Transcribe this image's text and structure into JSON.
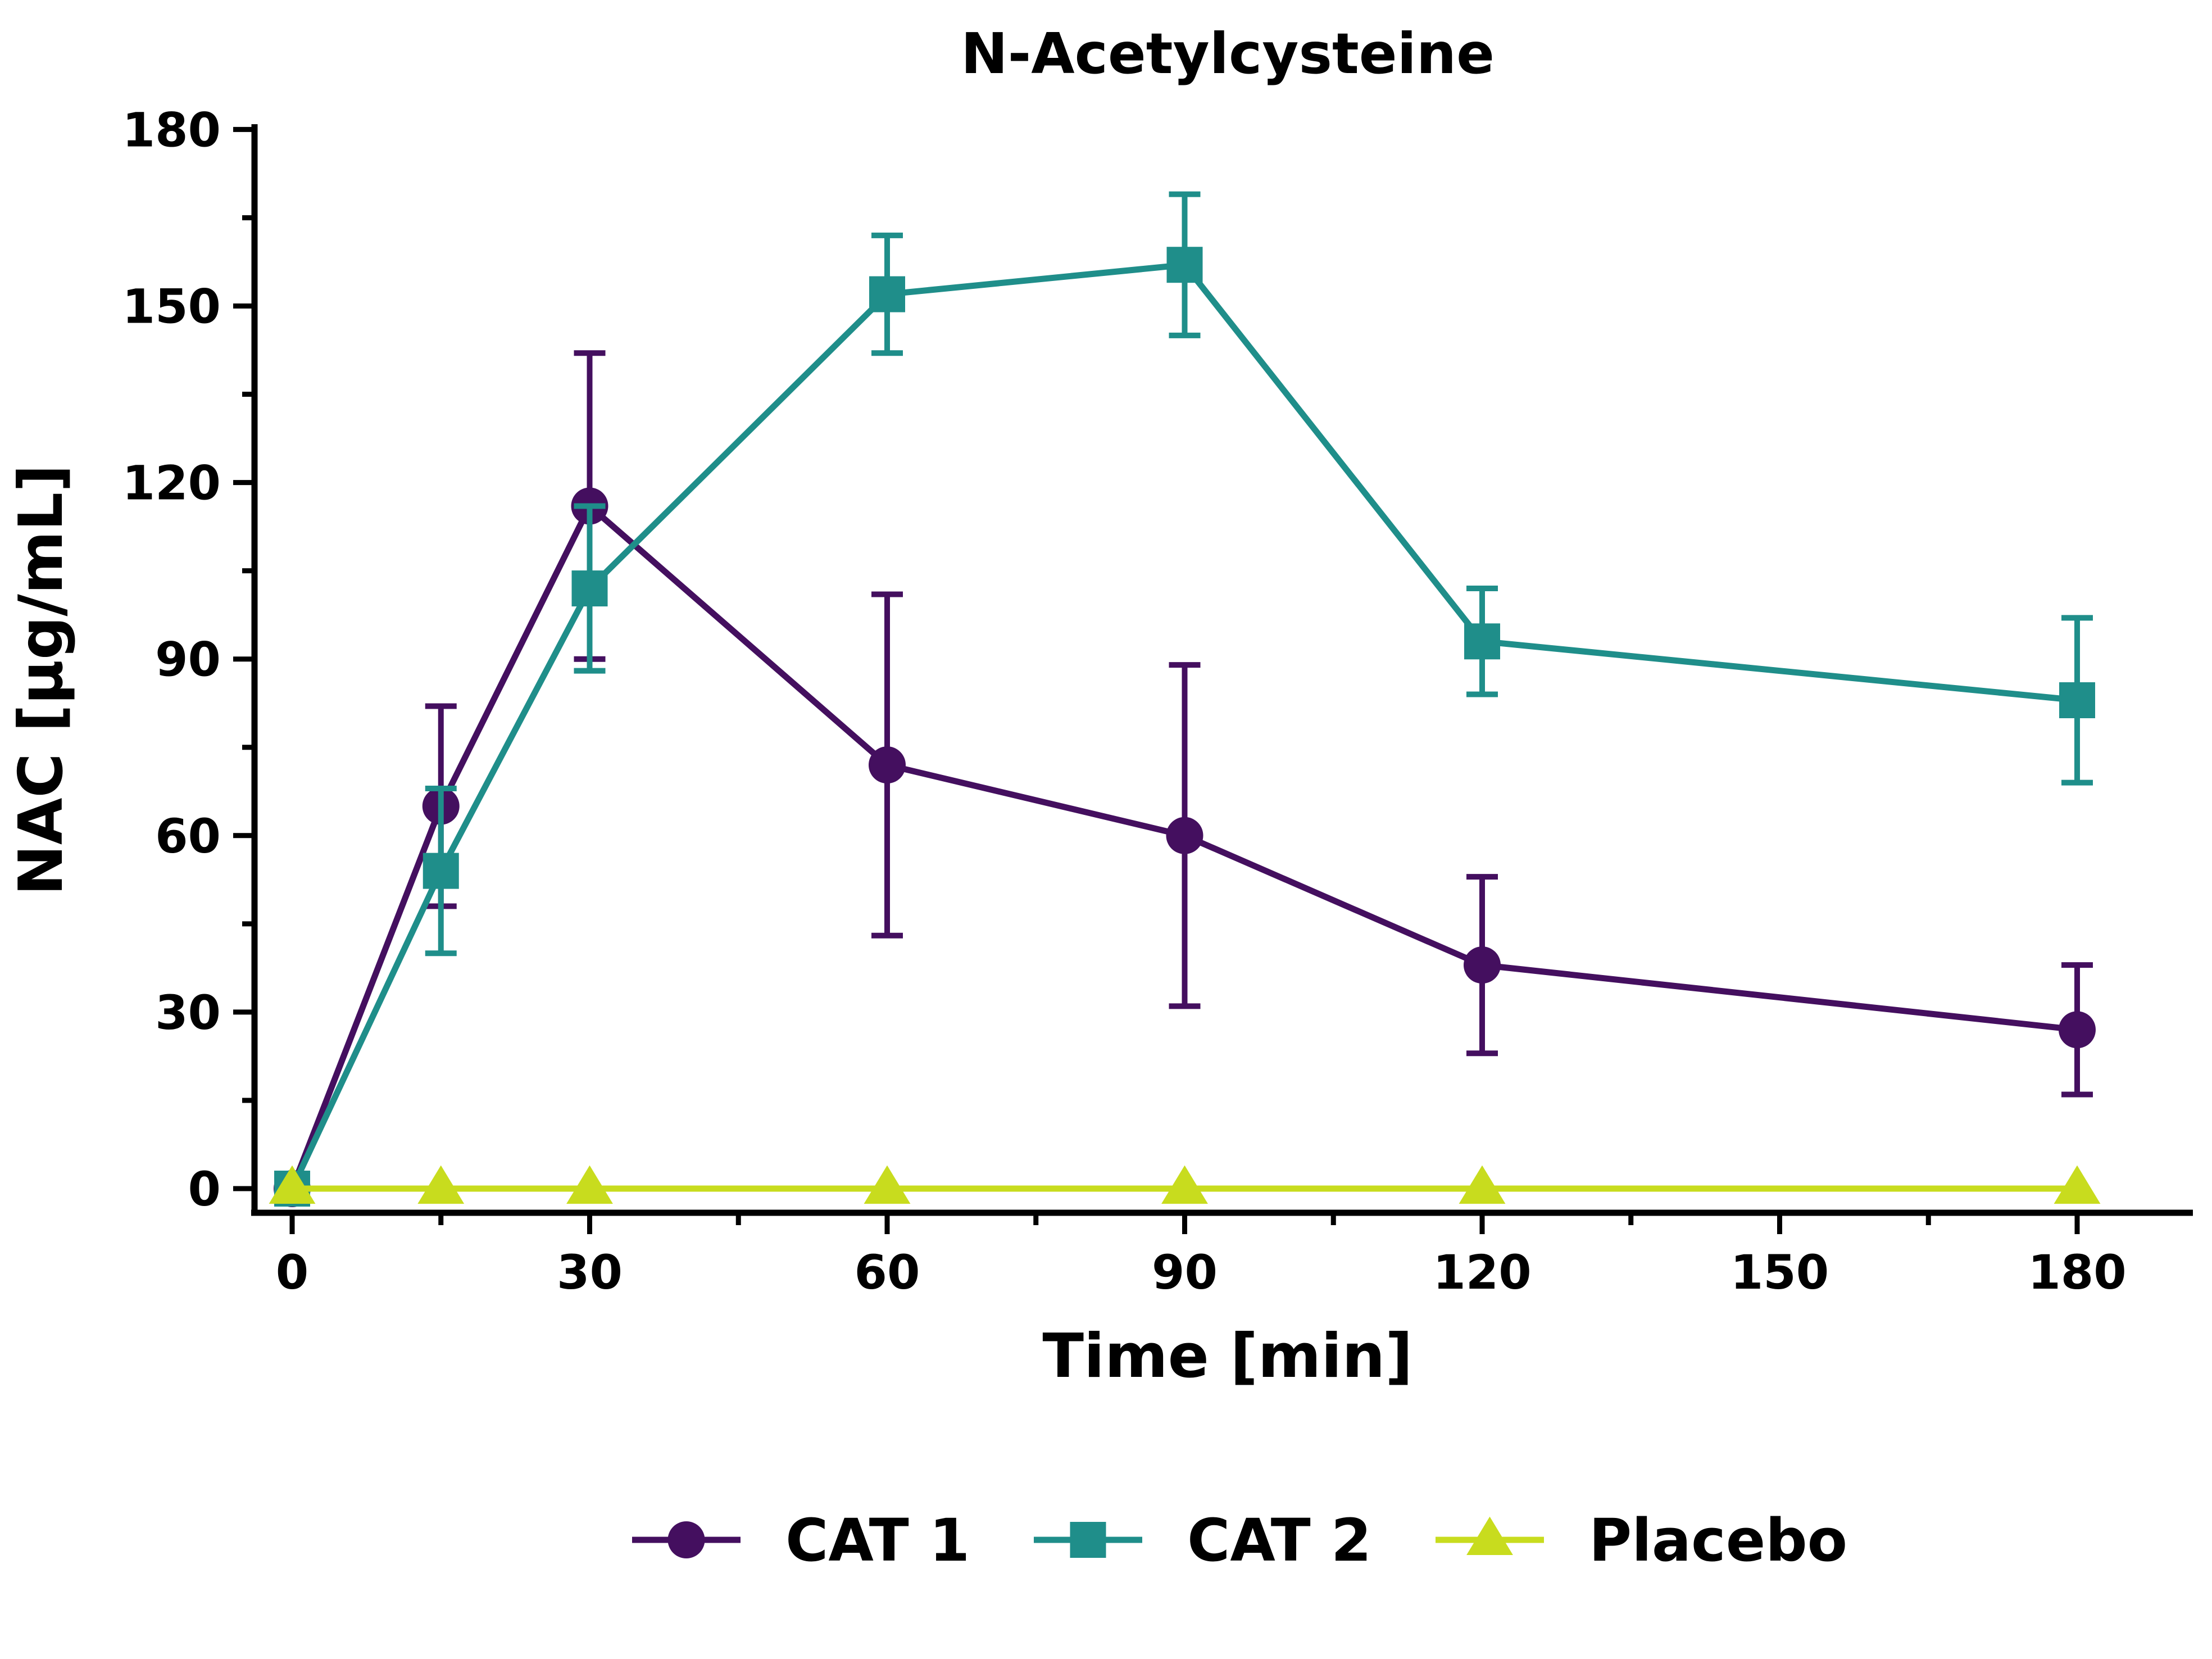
{
  "chart_data": {
    "type": "line",
    "title": "N-Acetylcysteine",
    "xlabel": "Time [min]",
    "ylabel": "NAC [µg/mL]",
    "xlim": [
      -4,
      190
    ],
    "ylim": [
      -4,
      180
    ],
    "x_ticks": [
      0,
      30,
      60,
      90,
      120,
      150,
      180
    ],
    "x_tick_labels": [
      "0",
      "30",
      "60",
      "90",
      "120",
      "150",
      "180"
    ],
    "x_minor_ticks": [
      15,
      45,
      75,
      105,
      135,
      165
    ],
    "y_ticks": [
      0,
      30,
      60,
      90,
      120,
      150,
      180
    ],
    "y_tick_labels": [
      "0",
      "30",
      "60",
      "90",
      "120",
      "150",
      "180"
    ],
    "y_minor_ticks": [
      15,
      45,
      75,
      105,
      135,
      165
    ],
    "grid": false,
    "legend_position": "bottom-center",
    "series": [
      {
        "name": "CAT 1",
        "marker": "circle",
        "color": "#440f5f",
        "x": [
          0,
          15,
          30,
          60,
          90,
          120,
          180
        ],
        "y": [
          0,
          65,
          116,
          72,
          60,
          38,
          27
        ],
        "error": [
          0,
          17,
          26,
          29,
          29,
          15,
          11
        ]
      },
      {
        "name": "CAT 2",
        "marker": "square",
        "color": "#1f8e8a",
        "x": [
          0,
          15,
          30,
          60,
          90,
          120,
          180
        ],
        "y": [
          0,
          54,
          102,
          152,
          157,
          93,
          83
        ],
        "error": [
          0,
          14,
          14,
          10,
          12,
          9,
          14
        ]
      },
      {
        "name": "Placebo",
        "marker": "triangle",
        "color": "#c8dc1e",
        "x": [
          0,
          15,
          30,
          60,
          90,
          120,
          180
        ],
        "y": [
          0,
          0,
          0,
          0,
          0,
          0,
          0
        ],
        "error": [
          0,
          0,
          0,
          0,
          0,
          0,
          0
        ]
      }
    ]
  }
}
